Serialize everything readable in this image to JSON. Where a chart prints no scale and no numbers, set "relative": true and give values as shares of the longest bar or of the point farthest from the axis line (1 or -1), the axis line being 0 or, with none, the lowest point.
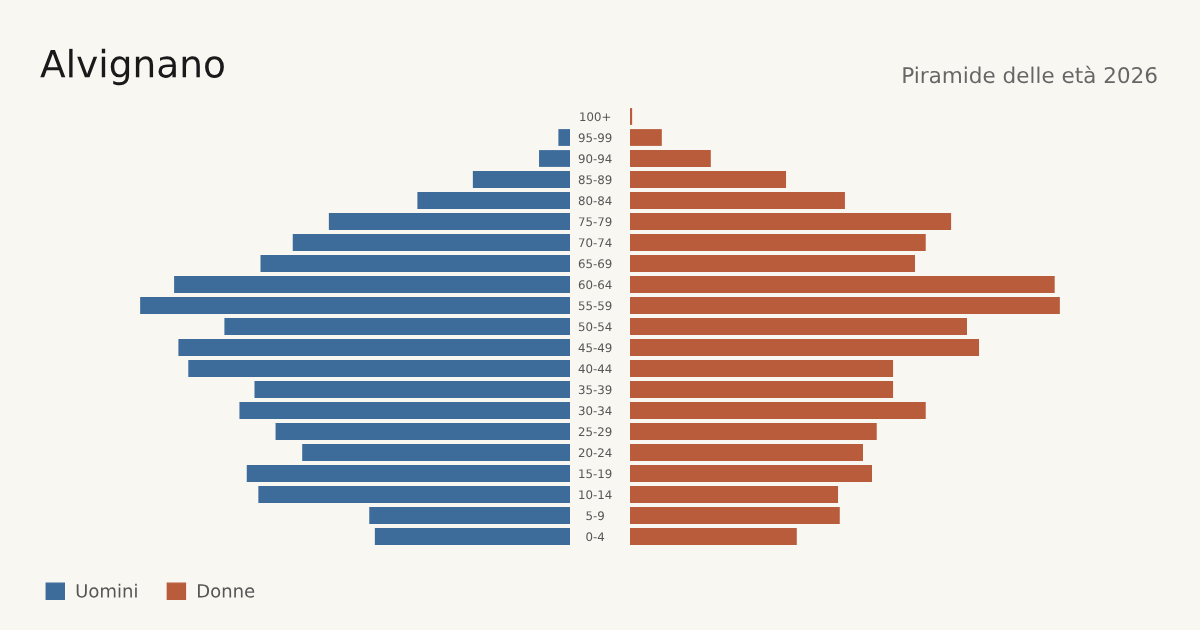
{
  "chart_data": [
    {
      "type": "bar",
      "orientation": "horizontal",
      "relative": true,
      "title": "Alvignano",
      "tick_labels": false,
      "categories": [
        "100+",
        "95-99",
        "90-94",
        "85-89",
        "80-84",
        "75-79",
        "70-74",
        "65-69",
        "60-64",
        "55-59",
        "50-54",
        "45-49",
        "40-44",
        "35-39",
        "30-34",
        "25-29",
        "20-24",
        "15-19",
        "10-14",
        "5-9",
        "0-4"
      ],
      "series": [
        {
          "name": "Uomini",
          "color": "#3d6b9a",
          "values": [
            0,
            -0.027,
            -0.072,
            -0.226,
            -0.355,
            -0.561,
            -0.645,
            -0.72,
            -0.921,
            -1,
            -0.804,
            -0.911,
            -0.888,
            -0.734,
            -0.769,
            -0.685,
            -0.623,
            -0.752,
            -0.725,
            -0.467,
            -0.454
          ]
        }
      ],
      "legend": "bottom left"
    },
    {
      "type": "bar",
      "orientation": "horizontal",
      "relative": true,
      "subtitle": "Piramide delle età 2026",
      "categories": [
        "100+",
        "95-99",
        "90-94",
        "85-89",
        "80-84",
        "75-79",
        "70-74",
        "65-69",
        "60-64",
        "55-59",
        "50-54",
        "45-49",
        "40-44",
        "35-39",
        "30-34",
        "25-29",
        "20-24",
        "15-19",
        "10-14",
        "5-9",
        "0-4"
      ],
      "series": [
        {
          "name": "Donne",
          "color": "#b85c3c",
          "values": [
            0.005,
            0.074,
            0.188,
            0.363,
            0.5,
            0.747,
            0.688,
            0.663,
            0.988,
            1,
            0.784,
            0.812,
            0.612,
            0.612,
            0.688,
            0.574,
            0.542,
            0.563,
            0.484,
            0.488,
            0.388
          ]
        }
      ],
      "legend": "bottom left"
    }
  ]
}
